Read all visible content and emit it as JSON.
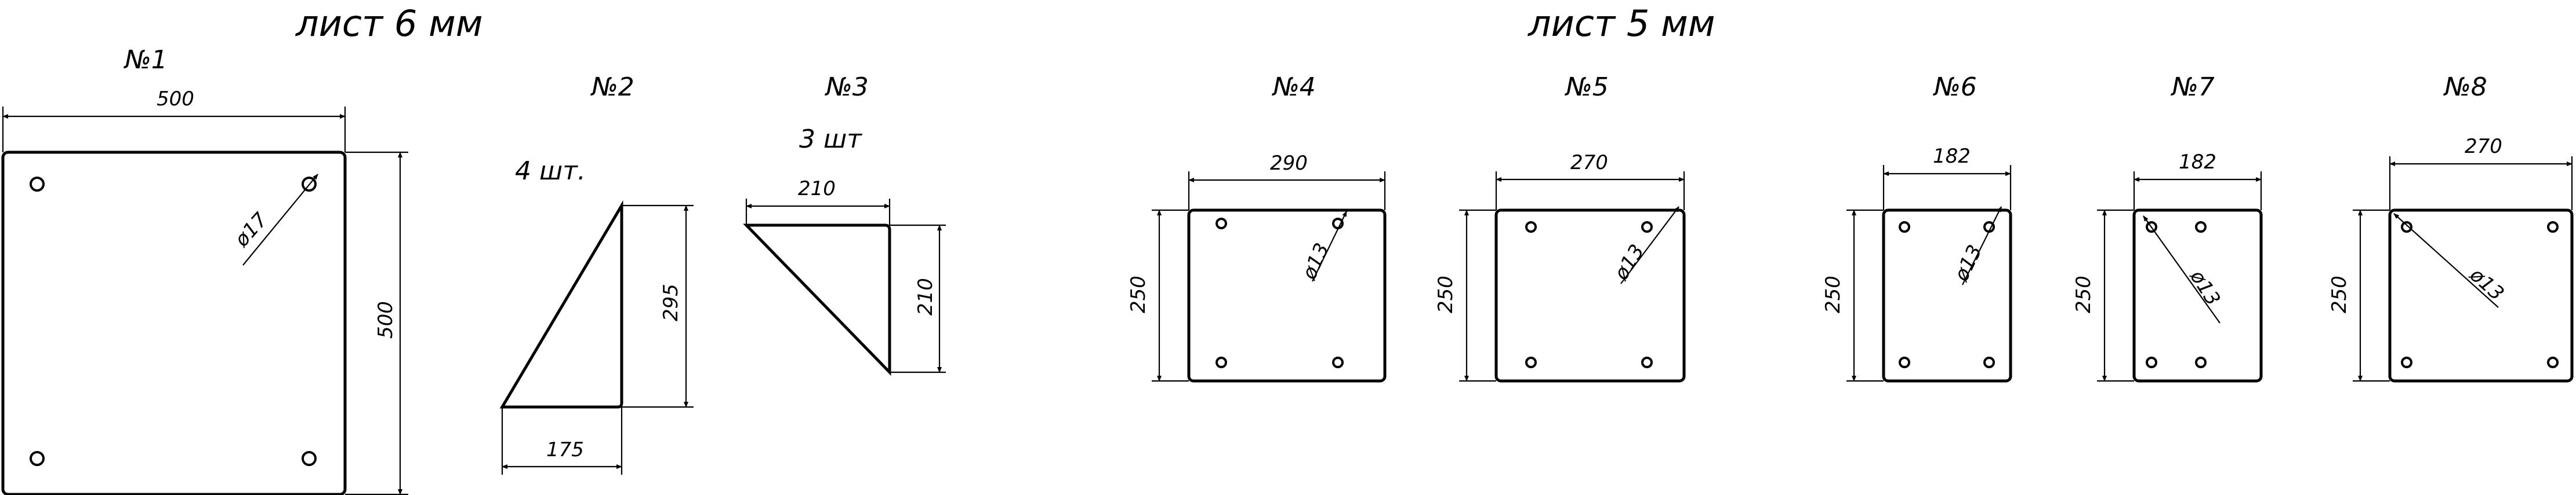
{
  "titles": {
    "sheet_6mm": "лист 6 мм",
    "sheet_5mm": "лист 5 мм"
  },
  "parts": [
    {
      "id": "part-1",
      "label": "№1",
      "dims": {
        "width": "500",
        "height": "500",
        "hole": "ø17"
      }
    },
    {
      "id": "part-2",
      "label": "№2",
      "qty": "4 шт.",
      "dims": {
        "height": "295",
        "base": "175"
      }
    },
    {
      "id": "part-3",
      "label": "№3",
      "qty": "3 шт",
      "dims": {
        "width": "210",
        "height": "210"
      }
    },
    {
      "id": "part-4",
      "label": "№4",
      "dims": {
        "width": "290",
        "height": "250",
        "hole": "ø13"
      }
    },
    {
      "id": "part-5",
      "label": "№5",
      "dims": {
        "width": "270",
        "height": "250",
        "hole": "ø13"
      }
    },
    {
      "id": "part-6",
      "label": "№6",
      "dims": {
        "width": "182",
        "height": "250",
        "hole": "ø13"
      }
    },
    {
      "id": "part-7",
      "label": "№7",
      "dims": {
        "width": "182",
        "height": "250",
        "hole": "ø13"
      }
    },
    {
      "id": "part-8",
      "label": "№8",
      "dims": {
        "width": "270",
        "height": "250",
        "hole": "ø13"
      }
    }
  ]
}
